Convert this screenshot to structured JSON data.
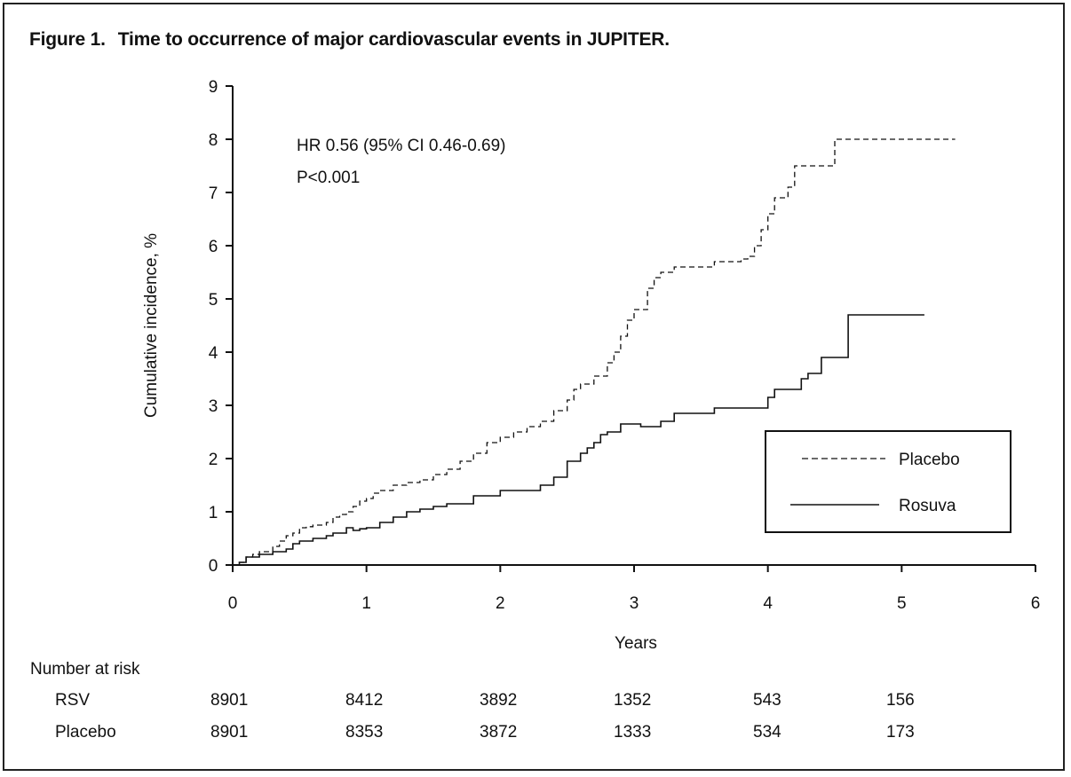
{
  "figure": {
    "number": "Figure 1.",
    "title": "Time to occurrence of major cardiovascular events in JUPITER."
  },
  "chart_data": {
    "type": "line",
    "title": "Time to occurrence of major cardiovascular events in JUPITER.",
    "xlabel": "Years",
    "ylabel": "Cumulative incidence, %",
    "xlim": [
      0,
      6
    ],
    "ylim": [
      0,
      9
    ],
    "xticks": [
      "0",
      "1",
      "2",
      "3",
      "4",
      "5",
      "6"
    ],
    "yticks": [
      "0",
      "1",
      "2",
      "3",
      "4",
      "5",
      "6",
      "7",
      "8",
      "9"
    ],
    "grid": false,
    "legend_position": "lower-right",
    "annotations": [
      "HR 0.56 (95% CI 0.46-0.69)",
      "P<0.001"
    ],
    "series": [
      {
        "name": "Placebo",
        "style": "dashed",
        "color": "#111111",
        "x": [
          0,
          0.05,
          0.1,
          0.15,
          0.2,
          0.3,
          0.35,
          0.4,
          0.45,
          0.5,
          0.55,
          0.6,
          0.7,
          0.75,
          0.8,
          0.85,
          0.9,
          0.95,
          1.0,
          1.05,
          1.1,
          1.2,
          1.3,
          1.4,
          1.5,
          1.6,
          1.7,
          1.8,
          1.9,
          2.0,
          2.1,
          2.2,
          2.3,
          2.4,
          2.5,
          2.55,
          2.6,
          2.7,
          2.8,
          2.85,
          2.9,
          2.95,
          3.0,
          3.1,
          3.15,
          3.2,
          3.3,
          3.4,
          3.6,
          3.7,
          3.8,
          3.85,
          3.9,
          3.95,
          4.0,
          4.05,
          4.15,
          4.2,
          4.45,
          4.5,
          5.4
        ],
        "y": [
          0,
          0.05,
          0.15,
          0.2,
          0.25,
          0.35,
          0.45,
          0.55,
          0.6,
          0.7,
          0.72,
          0.75,
          0.8,
          0.9,
          0.95,
          1.0,
          1.1,
          1.2,
          1.25,
          1.35,
          1.4,
          1.5,
          1.55,
          1.6,
          1.7,
          1.8,
          1.95,
          2.1,
          2.3,
          2.4,
          2.5,
          2.6,
          2.7,
          2.9,
          3.1,
          3.3,
          3.4,
          3.55,
          3.8,
          4.0,
          4.3,
          4.6,
          4.8,
          5.2,
          5.4,
          5.5,
          5.6,
          5.6,
          5.7,
          5.7,
          5.75,
          5.8,
          6.0,
          6.3,
          6.6,
          6.9,
          7.1,
          7.5,
          7.5,
          8.0,
          8.0
        ]
      },
      {
        "name": "Rosuva",
        "style": "solid",
        "color": "#111111",
        "x": [
          0,
          0.05,
          0.1,
          0.2,
          0.3,
          0.4,
          0.45,
          0.5,
          0.6,
          0.7,
          0.75,
          0.85,
          0.9,
          0.95,
          1.0,
          1.1,
          1.2,
          1.3,
          1.4,
          1.5,
          1.6,
          1.8,
          2.0,
          2.3,
          2.4,
          2.5,
          2.6,
          2.65,
          2.7,
          2.75,
          2.8,
          2.9,
          3.05,
          3.2,
          3.3,
          3.6,
          3.7,
          4.0,
          4.05,
          4.25,
          4.3,
          4.4,
          4.6,
          5.17
        ],
        "y": [
          0,
          0.05,
          0.15,
          0.2,
          0.25,
          0.3,
          0.4,
          0.45,
          0.5,
          0.55,
          0.6,
          0.7,
          0.65,
          0.68,
          0.7,
          0.8,
          0.9,
          1.0,
          1.05,
          1.1,
          1.15,
          1.3,
          1.4,
          1.5,
          1.65,
          1.95,
          2.1,
          2.2,
          2.3,
          2.45,
          2.5,
          2.65,
          2.6,
          2.7,
          2.85,
          2.95,
          2.95,
          3.15,
          3.3,
          3.5,
          3.6,
          3.9,
          4.7,
          4.7
        ]
      }
    ],
    "number_at_risk": {
      "label": "Number at risk",
      "rows": [
        {
          "name": "RSV",
          "values": [
            "8901",
            "8412",
            "3892",
            "1352",
            "543",
            "156"
          ]
        },
        {
          "name": "Placebo",
          "values": [
            "8901",
            "8353",
            "3872",
            "1333",
            "534",
            "173"
          ]
        }
      ]
    }
  }
}
